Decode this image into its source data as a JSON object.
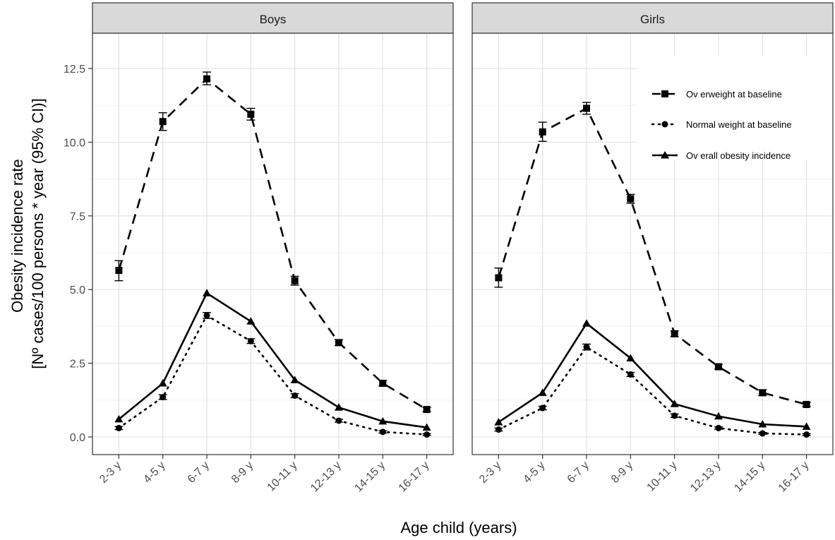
{
  "chart_data": {
    "type": "line",
    "facets": [
      "Boys",
      "Girls"
    ],
    "categories": [
      "2-3 y",
      "4-5 y",
      "6-7 y",
      "8-9 y",
      "10-11 y",
      "12-13 y",
      "14-15 y",
      "16-17 y"
    ],
    "xlabel": "Age child (years)",
    "ylabel": [
      "Obesity incidence rate",
      "[Nº cases/100 persons * year (95% CI)]"
    ],
    "ylim": [
      -0.6,
      13.7
    ],
    "yticks": [
      0.0,
      2.5,
      5.0,
      7.5,
      10.0,
      12.5
    ],
    "ytick_labels": [
      "0.0",
      "2.5",
      "5.0",
      "7.5",
      "10.0",
      "12.5"
    ],
    "grid": true,
    "legend_position": "top-right of Girls panel",
    "series": [
      {
        "name": "Ov erweight at baseline",
        "line": "dashed",
        "marker": "square",
        "Boys": {
          "values": [
            5.65,
            10.7,
            12.15,
            10.95,
            5.3,
            3.2,
            1.82,
            0.93
          ],
          "lower": [
            5.3,
            10.4,
            11.95,
            10.75,
            5.15,
            3.1,
            1.72,
            0.86
          ],
          "upper": [
            5.98,
            11.0,
            12.38,
            11.15,
            5.45,
            3.3,
            1.92,
            1.0
          ]
        },
        "Girls": {
          "values": [
            5.4,
            10.35,
            11.15,
            8.08,
            3.5,
            2.38,
            1.5,
            1.1
          ],
          "lower": [
            5.08,
            10.03,
            10.95,
            7.93,
            3.4,
            2.3,
            1.4,
            1.03
          ],
          "upper": [
            5.73,
            10.68,
            11.35,
            8.23,
            3.6,
            2.46,
            1.6,
            1.17
          ]
        }
      },
      {
        "name": "Normal weight at baseline",
        "line": "dotted",
        "marker": "circle",
        "Boys": {
          "values": [
            0.3,
            1.35,
            4.12,
            3.25,
            1.4,
            0.55,
            0.17,
            0.08
          ],
          "lower": [
            0.25,
            1.27,
            4.02,
            3.17,
            1.33,
            0.5,
            0.13,
            0.05
          ],
          "upper": [
            0.35,
            1.43,
            4.22,
            3.33,
            1.47,
            0.6,
            0.21,
            0.11
          ]
        },
        "Girls": {
          "values": [
            0.25,
            0.98,
            3.05,
            2.12,
            0.72,
            0.3,
            0.12,
            0.08
          ],
          "lower": [
            0.2,
            0.92,
            2.95,
            2.05,
            0.66,
            0.26,
            0.09,
            0.05
          ],
          "upper": [
            0.3,
            1.04,
            3.15,
            2.19,
            0.78,
            0.34,
            0.15,
            0.11
          ]
        }
      },
      {
        "name": "Ov erall obesity  incidence",
        "line": "solid",
        "marker": "triangle",
        "Boys": {
          "values": [
            0.6,
            1.82,
            4.88,
            3.92,
            1.93,
            1.0,
            0.53,
            0.32
          ]
        },
        "Girls": {
          "values": [
            0.5,
            1.5,
            3.85,
            2.67,
            1.12,
            0.7,
            0.43,
            0.35
          ]
        }
      }
    ]
  }
}
